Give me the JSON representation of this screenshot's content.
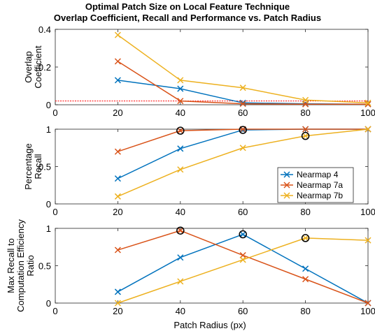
{
  "chart_data": {
    "type": "line",
    "title": "Optimal Patch Size on Local Feature Technique",
    "subtitle": "Overlap Coefficient, Recall and Performance vs. Patch Radius",
    "xlabel": "Patch Radius (px)",
    "x": [
      20,
      40,
      60,
      80,
      100
    ],
    "xlim": [
      0,
      100
    ],
    "x_ticks": [
      "0",
      "20",
      "40",
      "60",
      "80",
      "100"
    ],
    "legend": {
      "placement": "inside-lower-right of middle panel",
      "entries": [
        "Nearmap 4",
        "Nearmap 7a",
        "Nearmap 7b"
      ]
    },
    "colors": {
      "Nearmap 4": "#0072BD",
      "Nearmap 7a": "#D95319",
      "Nearmap 7b": "#EDB120",
      "threshold": "#FF0000"
    },
    "panels": [
      {
        "ylabel": [
          "Overlap",
          "Coefficient"
        ],
        "ylim": [
          0,
          0.4
        ],
        "y_ticks": [
          "0",
          "0.2",
          "0.4"
        ],
        "threshold_line": 0.02,
        "series": [
          {
            "name": "Nearmap 4",
            "values": [
              0.13,
              0.085,
              0.01,
              0.005,
              0.003
            ]
          },
          {
            "name": "Nearmap 7a",
            "values": [
              0.23,
              0.02,
              0.005,
              0.003,
              0.003
            ]
          },
          {
            "name": "Nearmap 7b",
            "values": [
              0.37,
              0.13,
              0.09,
              0.025,
              0.01
            ]
          }
        ],
        "circled": []
      },
      {
        "ylabel": [
          "Percentage",
          "Recall"
        ],
        "ylim": [
          0,
          1
        ],
        "y_ticks": [
          "0",
          "0.5",
          "1"
        ],
        "series": [
          {
            "name": "Nearmap 4",
            "values": [
              0.34,
              0.74,
              0.99,
              1.0,
              1.0
            ]
          },
          {
            "name": "Nearmap 7a",
            "values": [
              0.7,
              0.98,
              1.0,
              1.0,
              1.0
            ]
          },
          {
            "name": "Nearmap 7b",
            "values": [
              0.1,
              0.46,
              0.75,
              0.91,
              1.0
            ]
          }
        ],
        "circled": [
          {
            "series": "Nearmap 7a",
            "x": 40
          },
          {
            "series": "Nearmap 4",
            "x": 60
          },
          {
            "series": "Nearmap 7b",
            "x": 80
          }
        ]
      },
      {
        "ylabel": [
          "Max Recall to",
          "Computation Efficiency",
          "Ratio"
        ],
        "ylim": [
          0,
          1
        ],
        "y_ticks": [
          "0",
          "0.5",
          "1"
        ],
        "series": [
          {
            "name": "Nearmap 4",
            "values": [
              0.15,
              0.61,
              0.92,
              0.46,
              0.0
            ]
          },
          {
            "name": "Nearmap 7a",
            "values": [
              0.71,
              0.97,
              0.64,
              0.32,
              0.0
            ]
          },
          {
            "name": "Nearmap 7b",
            "values": [
              0.0,
              0.29,
              0.58,
              0.87,
              0.84
            ]
          }
        ],
        "circled": [
          {
            "series": "Nearmap 7a",
            "x": 40
          },
          {
            "series": "Nearmap 4",
            "x": 60
          },
          {
            "series": "Nearmap 7b",
            "x": 80
          }
        ]
      }
    ]
  }
}
